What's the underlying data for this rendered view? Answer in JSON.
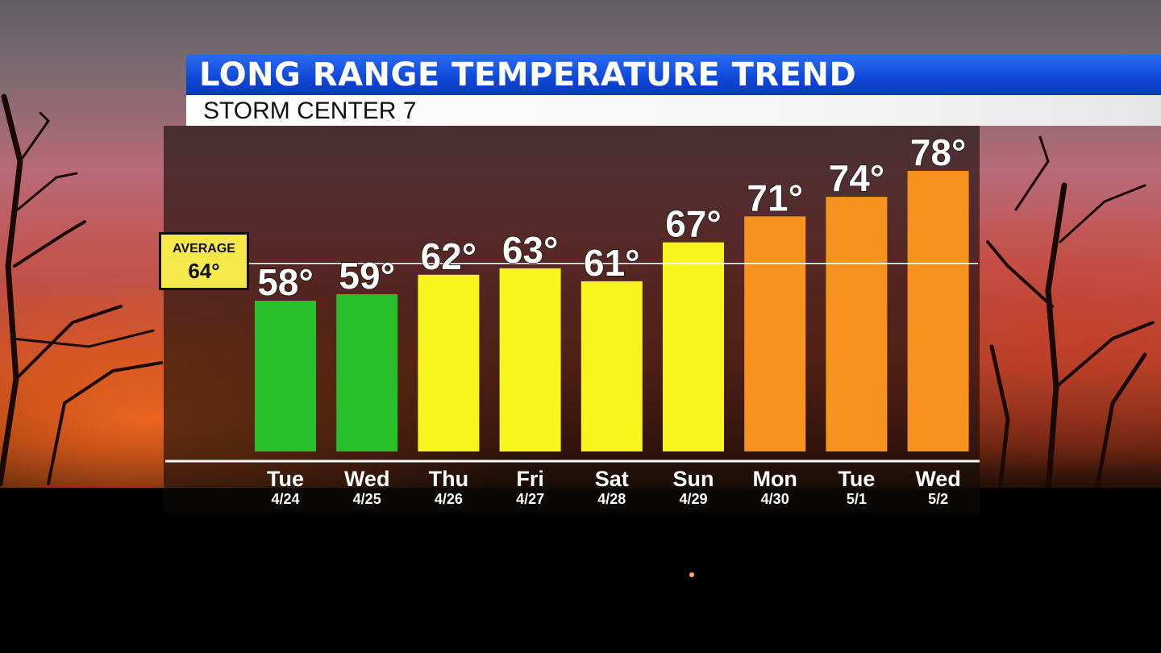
{
  "header": {
    "title": "LONG RANGE TEMPERATURE TREND",
    "subtitle": "STORM CENTER 7"
  },
  "average": {
    "label": "AVERAGE",
    "value_text": "64°"
  },
  "colors": {
    "title_bar": "#0e47d8",
    "cool": "#27c02a",
    "mild": "#f8f51e",
    "warm": "#f7921e",
    "average_box": "#f4e84a"
  },
  "chart_data": {
    "type": "bar",
    "categories": [
      "Tue",
      "Wed",
      "Thu",
      "Fri",
      "Sat",
      "Sun",
      "Mon",
      "Tue",
      "Wed"
    ],
    "dates": [
      "4/24",
      "4/25",
      "4/26",
      "4/27",
      "4/28",
      "4/29",
      "4/30",
      "5/1",
      "5/2"
    ],
    "values": [
      58,
      59,
      62,
      63,
      61,
      67,
      71,
      74,
      78
    ],
    "value_labels": [
      "58°",
      "59°",
      "62°",
      "63°",
      "61°",
      "67°",
      "71°",
      "74°",
      "78°"
    ],
    "bar_colors": [
      "#27c02a",
      "#27c02a",
      "#f8f51e",
      "#f8f51e",
      "#f8f51e",
      "#f8f51e",
      "#f7921e",
      "#f7921e",
      "#f7921e"
    ],
    "reference_line": 64,
    "title": "LONG RANGE TEMPERATURE TREND",
    "xlabel": "",
    "ylabel": "",
    "grid": false,
    "legend": "none"
  }
}
